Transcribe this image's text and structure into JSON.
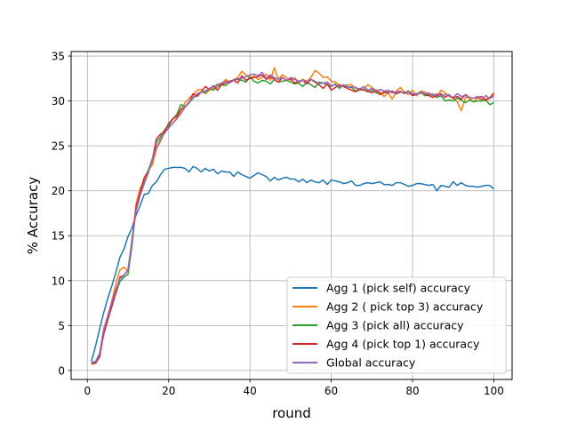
{
  "chart_data": {
    "type": "line",
    "title": "",
    "xlabel": "round",
    "ylabel": "% Accuracy",
    "xlim": [
      -4,
      104.5
    ],
    "ylim": [
      -1,
      35.5
    ],
    "xticks": [
      0,
      20,
      40,
      60,
      80,
      100
    ],
    "yticks": [
      0,
      5,
      10,
      15,
      20,
      25,
      30,
      35
    ],
    "grid": true,
    "legend_position": "lower right",
    "x": [
      1,
      2,
      3,
      4,
      5,
      6,
      7,
      8,
      9,
      10,
      11,
      12,
      13,
      14,
      15,
      16,
      17,
      18,
      19,
      20,
      21,
      22,
      23,
      24,
      25,
      26,
      27,
      28,
      29,
      30,
      31,
      32,
      33,
      34,
      35,
      36,
      37,
      38,
      39,
      40,
      41,
      42,
      43,
      44,
      45,
      46,
      47,
      48,
      49,
      50,
      51,
      52,
      53,
      54,
      55,
      56,
      57,
      58,
      59,
      60,
      61,
      62,
      63,
      64,
      65,
      66,
      67,
      68,
      69,
      70,
      71,
      72,
      73,
      74,
      75,
      76,
      77,
      78,
      79,
      80,
      81,
      82,
      83,
      84,
      85,
      86,
      87,
      88,
      89,
      90,
      91,
      92,
      93,
      94,
      95,
      96,
      97,
      98,
      99,
      100
    ],
    "series": [
      {
        "name": "Agg 1 (pick self) accuracy",
        "color": "#1f77b4",
        "values": [
          1.0,
          2.7,
          4.6,
          6.4,
          8.0,
          9.4,
          10.9,
          12.6,
          13.5,
          14.9,
          15.9,
          17.3,
          18.4,
          19.6,
          19.7,
          20.6,
          21.0,
          21.8,
          22.4,
          22.5,
          22.6,
          22.6,
          22.6,
          22.5,
          22.1,
          22.7,
          22.5,
          22.1,
          22.5,
          22.2,
          22.4,
          21.9,
          22.2,
          22.1,
          22.1,
          21.6,
          22.1,
          21.8,
          21.6,
          21.4,
          21.7,
          22.0,
          21.8,
          21.6,
          21.1,
          21.5,
          21.2,
          21.4,
          21.5,
          21.3,
          21.3,
          21.0,
          21.3,
          20.9,
          21.2,
          21.0,
          20.9,
          21.2,
          20.7,
          21.2,
          21.1,
          21.0,
          20.8,
          20.9,
          21.1,
          20.6,
          20.6,
          20.8,
          20.9,
          20.8,
          20.9,
          21.0,
          20.7,
          20.7,
          20.6,
          20.9,
          20.9,
          20.7,
          20.5,
          20.6,
          20.8,
          20.8,
          20.7,
          20.6,
          20.7,
          20.0,
          20.6,
          20.5,
          20.4,
          21.0,
          20.6,
          20.9,
          20.6,
          20.5,
          20.5,
          20.4,
          20.5,
          20.6,
          20.6,
          20.2
        ]
      },
      {
        "name": "Agg 2 ( pick top 3) accuracy",
        "color": "#ff7f0e",
        "values": [
          0.8,
          0.8,
          1.6,
          4.6,
          6.1,
          7.7,
          9.7,
          11.2,
          11.5,
          11.0,
          14.3,
          18.6,
          20.3,
          21.1,
          22.3,
          22.9,
          24.7,
          25.5,
          26.5,
          27.0,
          27.5,
          28.1,
          28.9,
          29.8,
          30.3,
          30.7,
          31.2,
          31.3,
          30.8,
          31.2,
          31.4,
          31.9,
          31.8,
          32.4,
          32.1,
          32.4,
          32.6,
          33.3,
          32.9,
          32.5,
          32.8,
          32.4,
          32.6,
          33.0,
          32.3,
          33.7,
          32.4,
          32.9,
          32.6,
          32.3,
          32.6,
          32.0,
          32.4,
          32.2,
          32.6,
          33.4,
          33.1,
          32.6,
          32.7,
          32.2,
          32.1,
          31.8,
          31.6,
          31.8,
          31.8,
          31.4,
          31.3,
          31.3,
          31.8,
          31.5,
          31.2,
          31.0,
          30.5,
          30.9,
          30.2,
          31.1,
          31.5,
          31.0,
          30.7,
          31.2,
          30.6,
          31.1,
          31.0,
          30.7,
          30.8,
          30.4,
          31.2,
          30.9,
          30.5,
          30.3,
          29.9,
          28.9,
          30.4,
          30.3,
          29.9,
          30.3,
          30.1,
          30.2,
          30.4,
          30.7
        ]
      },
      {
        "name": "Agg 3 (pick all) accuracy",
        "color": "#2ca02c",
        "values": [
          0.8,
          0.9,
          1.6,
          4.5,
          5.8,
          7.4,
          8.6,
          9.9,
          10.4,
          10.7,
          14.0,
          18.2,
          19.6,
          21.4,
          22.3,
          23.6,
          25.4,
          26.0,
          26.8,
          27.2,
          28.0,
          28.5,
          29.6,
          29.4,
          29.8,
          30.3,
          30.7,
          31.0,
          30.9,
          31.4,
          31.2,
          31.6,
          31.8,
          31.7,
          32.1,
          32.3,
          32.4,
          32.3,
          32.1,
          32.7,
          32.2,
          32.0,
          32.3,
          32.2,
          31.9,
          32.4,
          32.1,
          32.2,
          32.3,
          32.1,
          31.9,
          32.0,
          31.6,
          32.1,
          31.8,
          31.5,
          32.1,
          32.0,
          31.8,
          31.6,
          31.9,
          31.4,
          31.8,
          31.6,
          31.5,
          31.1,
          31.2,
          31.3,
          31.0,
          31.2,
          30.9,
          30.8,
          30.9,
          31.0,
          31.1,
          30.8,
          31.0,
          30.9,
          31.1,
          30.7,
          30.8,
          31.0,
          30.6,
          30.6,
          30.7,
          30.4,
          30.6,
          30.0,
          30.1,
          30.0,
          30.3,
          30.1,
          29.8,
          30.1,
          29.9,
          30.0,
          30.0,
          30.1,
          29.6,
          29.8
        ]
      },
      {
        "name": "Agg 4 (pick top 1) accuracy",
        "color": "#d62728",
        "values": [
          0.7,
          0.8,
          1.5,
          4.0,
          5.6,
          7.1,
          8.6,
          10.4,
          10.6,
          11.2,
          14.6,
          18.2,
          19.9,
          21.5,
          22.1,
          23.4,
          25.8,
          26.3,
          26.6,
          27.5,
          28.0,
          28.3,
          29.1,
          29.3,
          29.8,
          30.8,
          30.5,
          31.0,
          31.6,
          31.3,
          31.7,
          31.2,
          31.8,
          32.0,
          32.2,
          32.3,
          32.0,
          32.8,
          32.3,
          32.5,
          32.6,
          32.7,
          32.9,
          32.4,
          32.7,
          32.4,
          32.1,
          32.6,
          32.3,
          32.5,
          32.0,
          32.2,
          32.3,
          31.9,
          32.4,
          32.1,
          31.8,
          31.4,
          31.9,
          31.2,
          31.5,
          31.8,
          31.6,
          31.4,
          31.2,
          31.0,
          31.4,
          31.2,
          31.1,
          30.9,
          31.2,
          30.7,
          31.0,
          30.9,
          31.1,
          30.8,
          31.0,
          30.9,
          31.0,
          30.6,
          30.7,
          30.9,
          30.8,
          30.6,
          30.4,
          30.6,
          30.8,
          30.4,
          30.7,
          30.3,
          30.5,
          30.2,
          30.7,
          30.4,
          30.3,
          30.4,
          30.5,
          30.1,
          30.3,
          30.9
        ]
      },
      {
        "name": "Global accuracy",
        "color": "#9467bd",
        "values": [
          0.9,
          1.0,
          1.9,
          4.5,
          6.0,
          7.6,
          9.0,
          10.2,
          10.6,
          11.2,
          14.5,
          17.8,
          19.5,
          20.8,
          22.0,
          23.5,
          24.8,
          25.7,
          26.4,
          27.0,
          27.5,
          28.0,
          28.6,
          29.3,
          29.9,
          30.4,
          30.8,
          31.0,
          31.1,
          31.4,
          31.6,
          31.8,
          32.0,
          32.2,
          32.0,
          32.3,
          32.5,
          32.5,
          32.7,
          32.9,
          33.0,
          32.8,
          33.2,
          32.5,
          32.9,
          32.6,
          32.4,
          32.6,
          32.3,
          32.6,
          32.4,
          32.2,
          32.3,
          32.1,
          32.4,
          32.2,
          31.9,
          32.0,
          32.1,
          31.7,
          31.8,
          31.6,
          31.8,
          31.5,
          31.6,
          31.5,
          31.3,
          31.6,
          31.2,
          31.4,
          31.0,
          31.3,
          31.1,
          31.2,
          30.9,
          31.0,
          31.1,
          30.8,
          31.0,
          30.8,
          30.7,
          31.0,
          30.8,
          30.9,
          30.6,
          30.8,
          30.5,
          30.7,
          30.6,
          30.4,
          30.8,
          30.5,
          30.6,
          30.4,
          30.3,
          30.5,
          30.2,
          30.6,
          30.3,
          30.5
        ]
      }
    ]
  }
}
